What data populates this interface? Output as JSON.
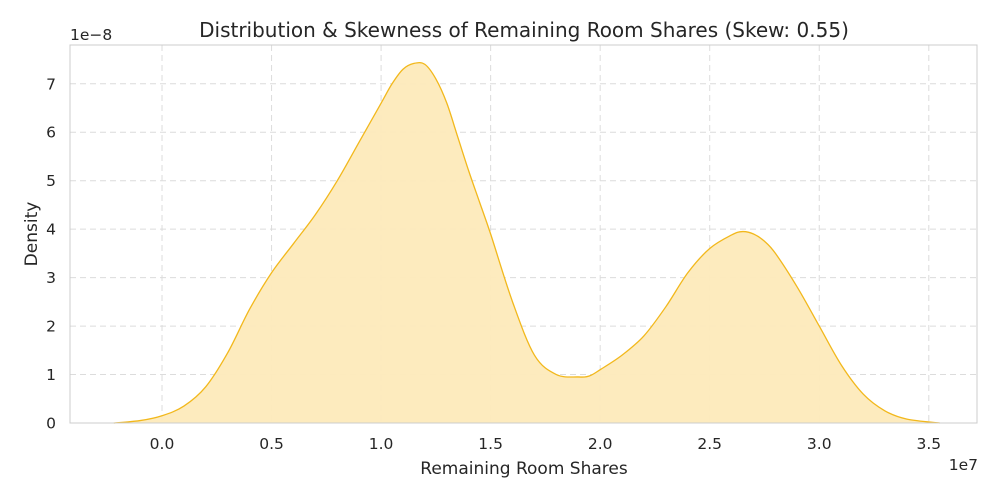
{
  "chart_data": {
    "type": "area",
    "title": "Distribution & Skewness of Remaining Room Shares (Skew: 0.55)",
    "xlabel": "Remaining Room Shares",
    "ylabel": "Density",
    "x_multiplier_label": "1e7",
    "y_multiplier_label": "1e−8",
    "xlim": [
      -0.42,
      3.72
    ],
    "ylim": [
      0,
      7.8
    ],
    "x_ticks": [
      0.0,
      0.5,
      1.0,
      1.5,
      2.0,
      2.5,
      3.0,
      3.5
    ],
    "x_tick_labels": [
      "0.0",
      "0.5",
      "1.0",
      "1.5",
      "2.0",
      "2.5",
      "3.0",
      "3.5"
    ],
    "y_ticks": [
      0,
      1,
      2,
      3,
      4,
      5,
      6,
      7
    ],
    "y_tick_labels": [
      "0",
      "1",
      "2",
      "3",
      "4",
      "5",
      "6",
      "7"
    ],
    "grid": true,
    "colors": {
      "line": "#f2b81c",
      "fill": "#fdeabb",
      "grid": "#dcdcdc",
      "spine": "#cccccc"
    },
    "series": [
      {
        "x": [
          -0.22,
          -0.1,
          0.0,
          0.1,
          0.2,
          0.3,
          0.4,
          0.5,
          0.6,
          0.7,
          0.8,
          0.9,
          1.0,
          1.05,
          1.1,
          1.15,
          1.2,
          1.25,
          1.3,
          1.35,
          1.4,
          1.45,
          1.5,
          1.6,
          1.7,
          1.8,
          1.9,
          1.95,
          2.0,
          2.1,
          2.2,
          2.3,
          2.4,
          2.5,
          2.6,
          2.65,
          2.7,
          2.75,
          2.8,
          2.9,
          3.0,
          3.1,
          3.2,
          3.3,
          3.4,
          3.55
        ],
        "y": [
          0.0,
          0.05,
          0.15,
          0.35,
          0.75,
          1.45,
          2.35,
          3.1,
          3.7,
          4.3,
          5.0,
          5.8,
          6.6,
          7.0,
          7.3,
          7.42,
          7.4,
          7.1,
          6.6,
          5.9,
          5.2,
          4.55,
          3.9,
          2.5,
          1.4,
          1.0,
          0.95,
          0.97,
          1.1,
          1.4,
          1.8,
          2.4,
          3.1,
          3.6,
          3.88,
          3.95,
          3.9,
          3.75,
          3.5,
          2.8,
          2.0,
          1.2,
          0.6,
          0.25,
          0.08,
          0.0
        ]
      }
    ]
  }
}
